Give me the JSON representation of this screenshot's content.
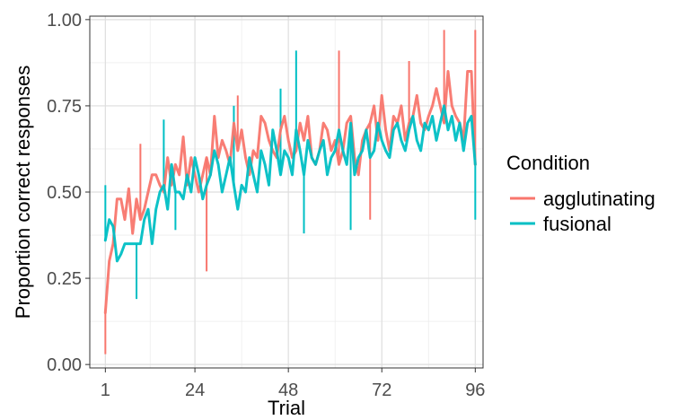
{
  "chart_data": {
    "type": "line",
    "xlabel": "Trial",
    "ylabel": "Proportion correct responses",
    "xlim": [
      -3,
      98
    ],
    "ylim": [
      -0.01,
      1.01
    ],
    "x_ticks": [
      1,
      24,
      48,
      72,
      96
    ],
    "x_tick_labels": [
      "1",
      "24",
      "48",
      "72",
      "96"
    ],
    "y_ticks": [
      0.0,
      0.25,
      0.5,
      0.75,
      1.0
    ],
    "y_tick_labels": [
      "0.00",
      "0.25",
      "0.50",
      "0.75",
      "1.00"
    ],
    "grid": true,
    "legend_position": "right",
    "legend_title": "Condition",
    "series": [
      {
        "name": "agglutinating",
        "color": "#F8766D",
        "x": [
          1,
          2,
          3,
          4,
          5,
          6,
          7,
          8,
          9,
          10,
          11,
          12,
          13,
          14,
          15,
          16,
          17,
          18,
          19,
          20,
          21,
          22,
          23,
          24,
          25,
          26,
          27,
          28,
          29,
          30,
          31,
          32,
          33,
          34,
          35,
          36,
          37,
          38,
          39,
          40,
          41,
          42,
          43,
          44,
          45,
          46,
          47,
          48,
          49,
          50,
          51,
          52,
          53,
          54,
          55,
          56,
          57,
          58,
          59,
          60,
          61,
          62,
          63,
          64,
          65,
          66,
          67,
          68,
          69,
          70,
          71,
          72,
          73,
          74,
          75,
          76,
          77,
          78,
          79,
          80,
          81,
          82,
          83,
          84,
          85,
          86,
          87,
          88,
          89,
          90,
          91,
          92,
          93,
          94,
          95,
          96
        ],
        "values": [
          0.15,
          0.3,
          0.35,
          0.48,
          0.48,
          0.42,
          0.51,
          0.38,
          0.48,
          0.42,
          0.45,
          0.5,
          0.55,
          0.55,
          0.52,
          0.5,
          0.6,
          0.52,
          0.58,
          0.55,
          0.66,
          0.52,
          0.6,
          0.55,
          0.5,
          0.55,
          0.6,
          0.55,
          0.72,
          0.6,
          0.65,
          0.62,
          0.58,
          0.7,
          0.62,
          0.68,
          0.6,
          0.55,
          0.62,
          0.6,
          0.72,
          0.7,
          0.65,
          0.62,
          0.6,
          0.68,
          0.72,
          0.65,
          0.6,
          0.62,
          0.7,
          0.65,
          0.72,
          0.6,
          0.58,
          0.62,
          0.7,
          0.68,
          0.62,
          0.65,
          0.58,
          0.62,
          0.7,
          0.72,
          0.6,
          0.55,
          0.65,
          0.68,
          0.7,
          0.75,
          0.65,
          0.78,
          0.68,
          0.62,
          0.72,
          0.7,
          0.75,
          0.65,
          0.7,
          0.72,
          0.78,
          0.7,
          0.68,
          0.72,
          0.75,
          0.8,
          0.75,
          0.7,
          0.85,
          0.75,
          0.72,
          0.7,
          0.65,
          0.85,
          0.85,
          0.58
        ]
      },
      {
        "name": "fusional",
        "color": "#00BFC4",
        "x": [
          1,
          2,
          3,
          4,
          5,
          6,
          7,
          8,
          9,
          10,
          11,
          12,
          13,
          14,
          15,
          16,
          17,
          18,
          19,
          20,
          21,
          22,
          23,
          24,
          25,
          26,
          27,
          28,
          29,
          30,
          31,
          32,
          33,
          34,
          35,
          36,
          37,
          38,
          39,
          40,
          41,
          42,
          43,
          44,
          45,
          46,
          47,
          48,
          49,
          50,
          51,
          52,
          53,
          54,
          55,
          56,
          57,
          58,
          59,
          60,
          61,
          62,
          63,
          64,
          65,
          66,
          67,
          68,
          69,
          70,
          71,
          72,
          73,
          74,
          75,
          76,
          77,
          78,
          79,
          80,
          81,
          82,
          83,
          84,
          85,
          86,
          87,
          88,
          89,
          90,
          91,
          92,
          93,
          94,
          95,
          96
        ],
        "values": [
          0.36,
          0.42,
          0.4,
          0.3,
          0.32,
          0.35,
          0.35,
          0.35,
          0.35,
          0.35,
          0.42,
          0.45,
          0.35,
          0.45,
          0.5,
          0.52,
          0.45,
          0.58,
          0.5,
          0.5,
          0.48,
          0.55,
          0.5,
          0.6,
          0.55,
          0.48,
          0.52,
          0.55,
          0.62,
          0.58,
          0.5,
          0.55,
          0.6,
          0.52,
          0.45,
          0.52,
          0.5,
          0.6,
          0.55,
          0.5,
          0.62,
          0.58,
          0.52,
          0.68,
          0.62,
          0.55,
          0.62,
          0.6,
          0.55,
          0.68,
          0.62,
          0.55,
          0.65,
          0.6,
          0.58,
          0.62,
          0.65,
          0.55,
          0.6,
          0.62,
          0.68,
          0.62,
          0.58,
          0.7,
          0.55,
          0.6,
          0.62,
          0.68,
          0.6,
          0.62,
          0.7,
          0.65,
          0.62,
          0.6,
          0.68,
          0.7,
          0.65,
          0.62,
          0.68,
          0.72,
          0.65,
          0.62,
          0.7,
          0.68,
          0.72,
          0.65,
          0.7,
          0.75,
          0.68,
          0.72,
          0.65,
          0.7,
          0.62,
          0.7,
          0.72,
          0.58
        ]
      }
    ],
    "spikes": [
      {
        "series": "agglutinating",
        "x": 1,
        "y": 0.03
      },
      {
        "series": "agglutinating",
        "x": 10,
        "y": 0.64
      },
      {
        "series": "agglutinating",
        "x": 27,
        "y": 0.27
      },
      {
        "series": "agglutinating",
        "x": 35,
        "y": 0.78
      },
      {
        "series": "agglutinating",
        "x": 61,
        "y": 0.91
      },
      {
        "series": "agglutinating",
        "x": 69,
        "y": 0.42
      },
      {
        "series": "agglutinating",
        "x": 79,
        "y": 0.88
      },
      {
        "series": "agglutinating",
        "x": 88,
        "y": 0.97
      },
      {
        "series": "agglutinating",
        "x": 96,
        "y": 0.97
      },
      {
        "series": "fusional",
        "x": 1,
        "y": 0.52
      },
      {
        "series": "fusional",
        "x": 9,
        "y": 0.19
      },
      {
        "series": "fusional",
        "x": 16,
        "y": 0.71
      },
      {
        "series": "fusional",
        "x": 19,
        "y": 0.39
      },
      {
        "series": "fusional",
        "x": 34,
        "y": 0.75
      },
      {
        "series": "fusional",
        "x": 46,
        "y": 0.8
      },
      {
        "series": "fusional",
        "x": 50,
        "y": 0.91
      },
      {
        "series": "fusional",
        "x": 52,
        "y": 0.38
      },
      {
        "series": "fusional",
        "x": 64,
        "y": 0.39
      },
      {
        "series": "fusional",
        "x": 90,
        "y": 0.72
      },
      {
        "series": "fusional",
        "x": 96,
        "y": 0.42
      }
    ]
  }
}
